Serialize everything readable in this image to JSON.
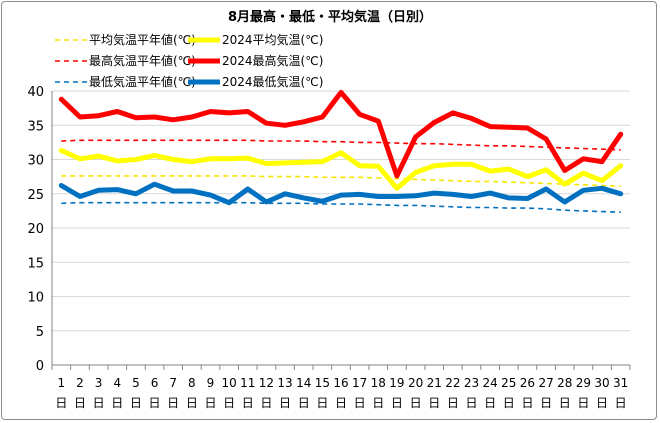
{
  "chart_data": {
    "type": "line",
    "title": "8月最高・最低・平均気温（日別）",
    "x": [
      1,
      2,
      3,
      4,
      5,
      6,
      7,
      8,
      9,
      10,
      11,
      12,
      13,
      14,
      15,
      16,
      17,
      18,
      19,
      20,
      21,
      22,
      23,
      24,
      25,
      26,
      27,
      28,
      29,
      30,
      31
    ],
    "x_unit": "日",
    "xlabel": "",
    "ylabel": "",
    "ylim": [
      0,
      40
    ],
    "yticks": [
      0,
      5,
      10,
      15,
      20,
      25,
      30,
      35,
      40
    ],
    "grid": "horizontal",
    "legend_position": "top-left",
    "series": [
      {
        "name": "平均気温平年値(℃)",
        "color": "#f5e600",
        "style": "dashed",
        "values": [
          27.6,
          27.6,
          27.6,
          27.6,
          27.6,
          27.6,
          27.6,
          27.6,
          27.6,
          27.6,
          27.6,
          27.5,
          27.5,
          27.5,
          27.4,
          27.4,
          27.4,
          27.3,
          27.2,
          27.1,
          27.0,
          26.9,
          26.8,
          26.8,
          26.7,
          26.6,
          26.5,
          26.4,
          26.3,
          26.2,
          26.1
        ]
      },
      {
        "name": "2024平均気温(℃)",
        "color": "#ffff00",
        "style": "solid",
        "values": [
          31.3,
          30.1,
          30.5,
          29.8,
          30.0,
          30.6,
          30.0,
          29.7,
          30.1,
          30.1,
          30.2,
          29.4,
          29.5,
          29.6,
          29.7,
          31.0,
          29.1,
          29.0,
          25.8,
          28.1,
          29.1,
          29.3,
          29.3,
          28.3,
          28.6,
          27.5,
          28.5,
          26.4,
          28.0,
          26.9,
          29.1
        ]
      },
      {
        "name": "最高気温平年値(℃)",
        "color": "#ff0000",
        "style": "dashed",
        "values": [
          32.7,
          32.8,
          32.8,
          32.8,
          32.8,
          32.8,
          32.8,
          32.8,
          32.8,
          32.8,
          32.8,
          32.7,
          32.7,
          32.7,
          32.6,
          32.6,
          32.5,
          32.5,
          32.4,
          32.3,
          32.3,
          32.2,
          32.1,
          32.0,
          32.0,
          31.9,
          31.8,
          31.7,
          31.6,
          31.5,
          31.4
        ]
      },
      {
        "name": "2024最高気温(℃)",
        "color": "#ff0000",
        "style": "solid",
        "values": [
          38.8,
          36.2,
          36.4,
          37.0,
          36.1,
          36.2,
          35.8,
          36.2,
          37.0,
          36.8,
          37.0,
          35.3,
          35.0,
          35.5,
          36.2,
          39.8,
          36.6,
          35.6,
          27.6,
          33.3,
          35.4,
          36.8,
          36.0,
          34.8,
          34.7,
          34.6,
          33.0,
          28.4,
          30.1,
          29.7,
          33.7
        ]
      },
      {
        "name": "最低気温平年値(℃)",
        "color": "#0070c0",
        "style": "dashed",
        "values": [
          23.6,
          23.7,
          23.7,
          23.7,
          23.7,
          23.7,
          23.7,
          23.7,
          23.7,
          23.7,
          23.7,
          23.6,
          23.6,
          23.6,
          23.5,
          23.5,
          23.5,
          23.4,
          23.3,
          23.3,
          23.2,
          23.1,
          23.0,
          23.0,
          22.9,
          22.9,
          22.8,
          22.6,
          22.5,
          22.4,
          22.3
        ]
      },
      {
        "name": "2024最低気温(℃)",
        "color": "#0070c0",
        "style": "solid",
        "values": [
          26.2,
          24.6,
          25.5,
          25.6,
          25.0,
          26.4,
          25.4,
          25.4,
          24.8,
          23.7,
          25.7,
          23.8,
          25.0,
          24.4,
          23.9,
          24.8,
          24.9,
          24.6,
          24.6,
          24.7,
          25.1,
          24.9,
          24.6,
          25.1,
          24.4,
          24.3,
          25.7,
          23.8,
          25.5,
          25.8,
          25.0
        ]
      }
    ]
  }
}
